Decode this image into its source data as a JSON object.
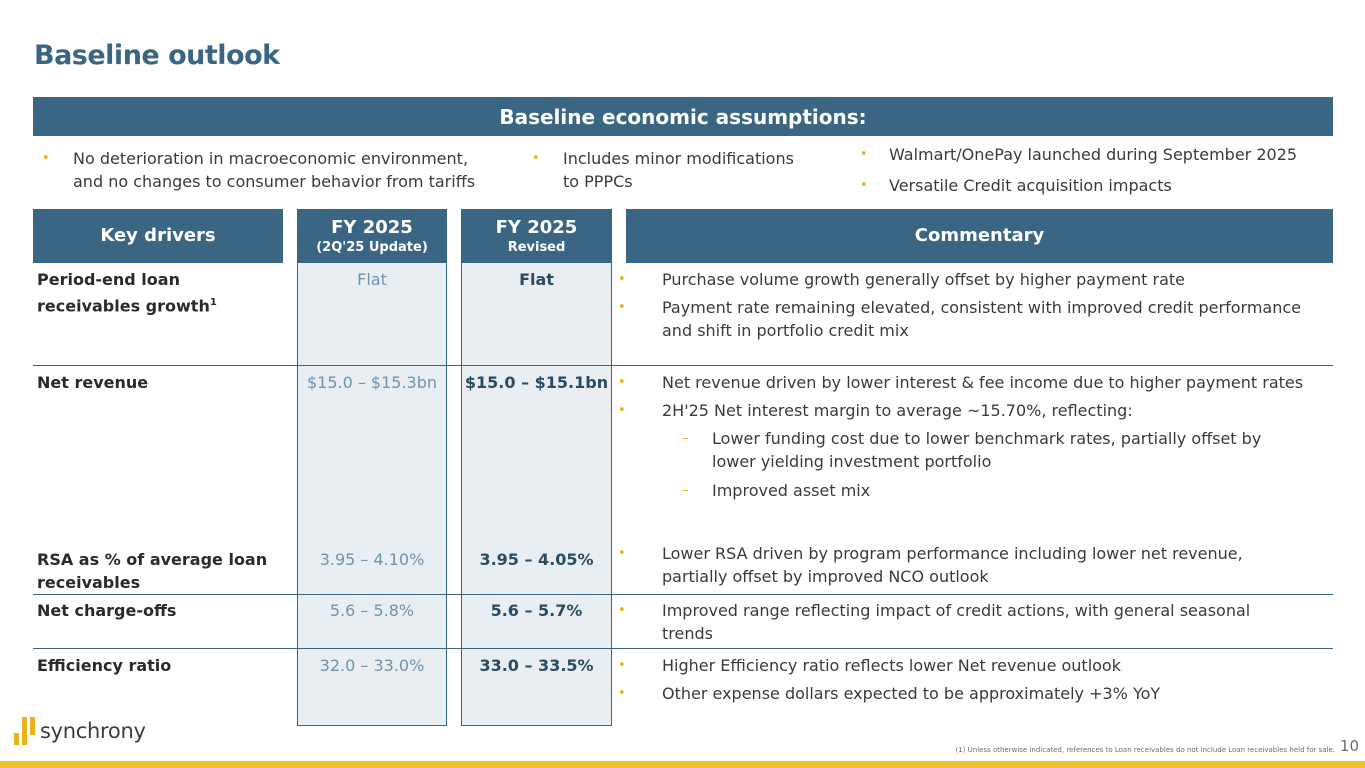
{
  "title": "Baseline outlook",
  "assumptions": {
    "heading": "Baseline economic assumptions:",
    "col1": [
      "No deterioration in macroeconomic environment,",
      "and no changes to consumer behavior from tariffs"
    ],
    "col2": [
      "Includes minor modifications",
      "to PPPCs"
    ],
    "col3": [
      "Walmart/OnePay launched during September 2025",
      "Versatile Credit acquisition impacts"
    ]
  },
  "table": {
    "headers": {
      "key_drivers": "Key drivers",
      "fy_old": "FY 2025",
      "fy_old_sub": "(2Q'25 Update)",
      "fy_new": "FY 2025",
      "fy_new_sub": "Revised",
      "commentary": "Commentary"
    },
    "rows": [
      {
        "label": [
          "Period-end loan",
          "receivables growth",
          "1"
        ],
        "old": "Flat",
        "new": "Flat",
        "comments": [
          "Purchase volume growth generally offset by higher payment rate",
          "Payment rate remaining elevated, consistent with improved credit performance",
          "and shift in portfolio credit mix"
        ]
      },
      {
        "label": [
          "Net revenue"
        ],
        "old": "$15.0 – $15.3bn",
        "new": "$15.0 – $15.1bn",
        "comments": [
          "Net revenue driven by lower interest & fee income due to higher payment rates",
          "2H'25 Net interest margin to average ~15.70%, reflecting:"
        ],
        "subcomments": [
          "Lower funding cost due to lower benchmark rates, partially offset by",
          "lower yielding investment portfolio",
          "Improved asset mix"
        ]
      },
      {
        "label": [
          "RSA as % of average loan",
          "receivables"
        ],
        "old": "3.95 – 4.10%",
        "new": "3.95 – 4.05%",
        "comments": [
          "Lower RSA driven by program performance including lower net revenue,",
          "partially offset by improved NCO outlook"
        ]
      },
      {
        "label": [
          "Net charge-offs"
        ],
        "old": "5.6 – 5.8%",
        "new": "5.6 – 5.7%",
        "comments": [
          "Improved range reflecting impact of credit actions, with general seasonal",
          "trends"
        ]
      },
      {
        "label": [
          "Efficiency ratio"
        ],
        "old": "32.0 – 33.0%",
        "new": "33.0 – 33.5%",
        "comments": [
          "Higher Efficiency ratio reflects lower Net revenue outlook",
          "Other expense dollars expected to be approximately +3% YoY"
        ]
      }
    ]
  },
  "footer": {
    "logo_text": "synchrony",
    "footnote": "(1) Unless otherwise indicated, references to Loan receivables do not include Loan receivables held for sale.",
    "page_number": "10"
  },
  "colors": {
    "primary": "#3a6683",
    "accent": "#e9b31b",
    "column_fill": "#e9eef2"
  },
  "icons": {
    "logo": "synchrony-bars-icon"
  }
}
